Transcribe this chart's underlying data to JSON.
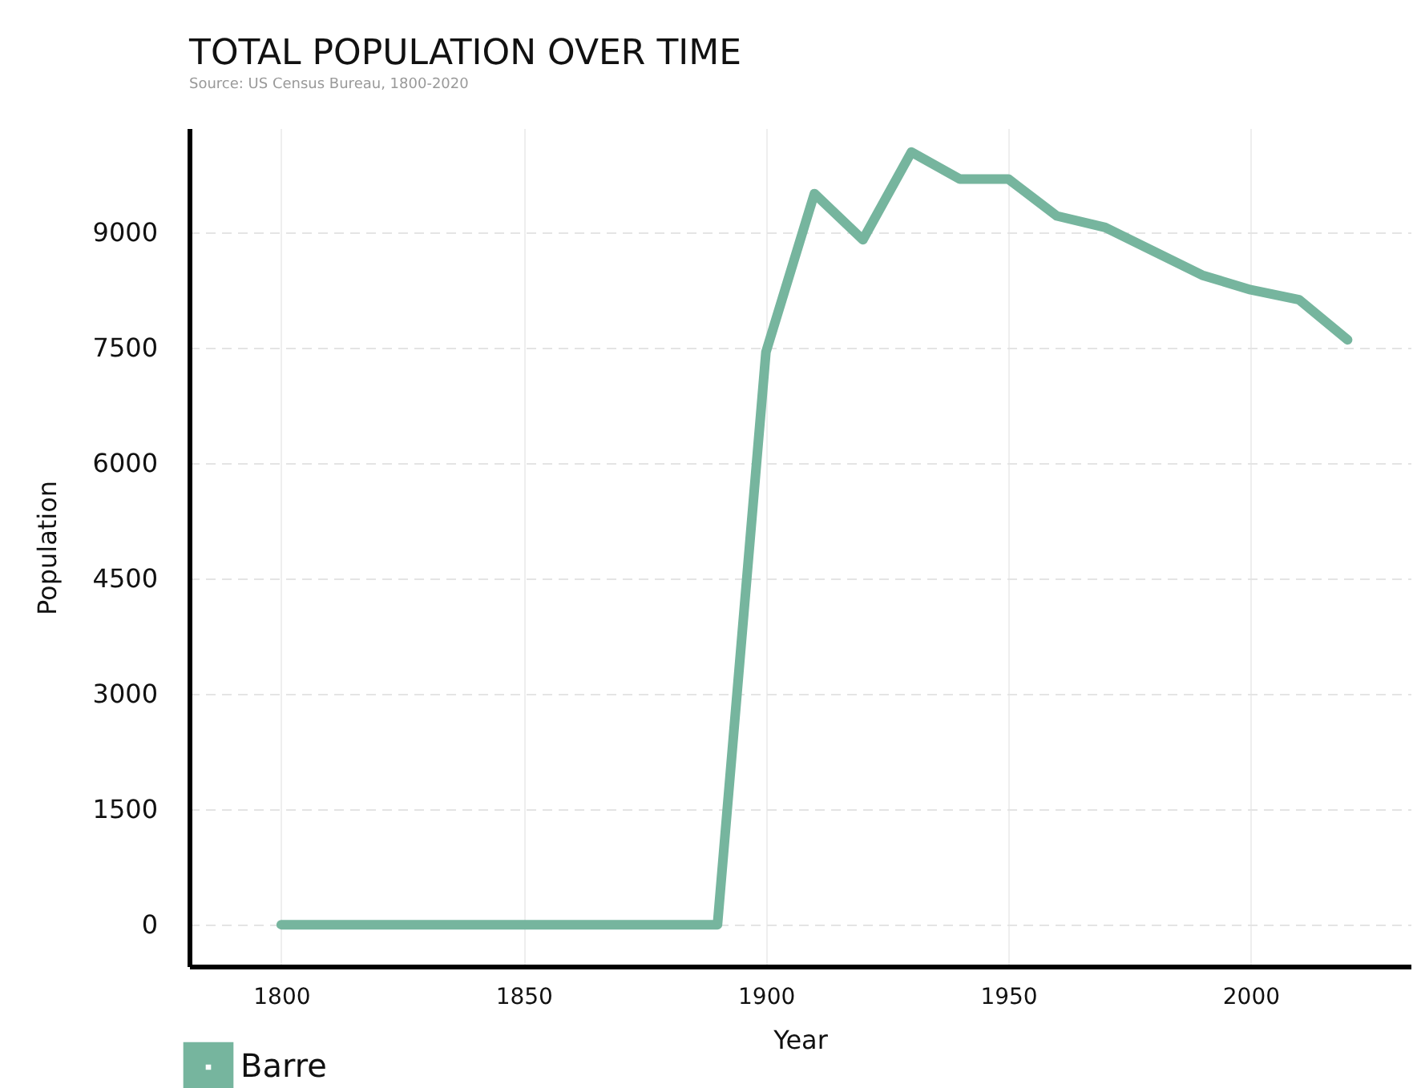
{
  "chart_data": {
    "type": "line",
    "title": "TOTAL POPULATION OVER TIME",
    "annotations": [
      "Source: US Census Bureau, 1800-2020"
    ],
    "xlabel": "Year",
    "ylabel": "Population",
    "x": [
      1800,
      1890,
      1900,
      1910,
      1920,
      1930,
      1940,
      1950,
      1960,
      1970,
      1980,
      1990,
      2000,
      2010,
      2020
    ],
    "series": [
      {
        "name": "Barre",
        "color": "#76b59e",
        "values": [
          0,
          0,
          7440,
          9500,
          8900,
          10040,
          9690,
          9690,
          9210,
          9060,
          8750,
          8440,
          8250,
          8120,
          7600
        ]
      }
    ],
    "xlim": [
      1781,
      2033
    ],
    "xticks": [
      1800,
      1850,
      1900,
      1950,
      2000
    ],
    "ylim": [
      -540,
      10350
    ],
    "yticks": [
      0,
      1500,
      3000,
      4500,
      6000,
      7500,
      9000
    ],
    "grid": true,
    "legend": "bottom left",
    "marker": "none",
    "line_style": "solid"
  }
}
